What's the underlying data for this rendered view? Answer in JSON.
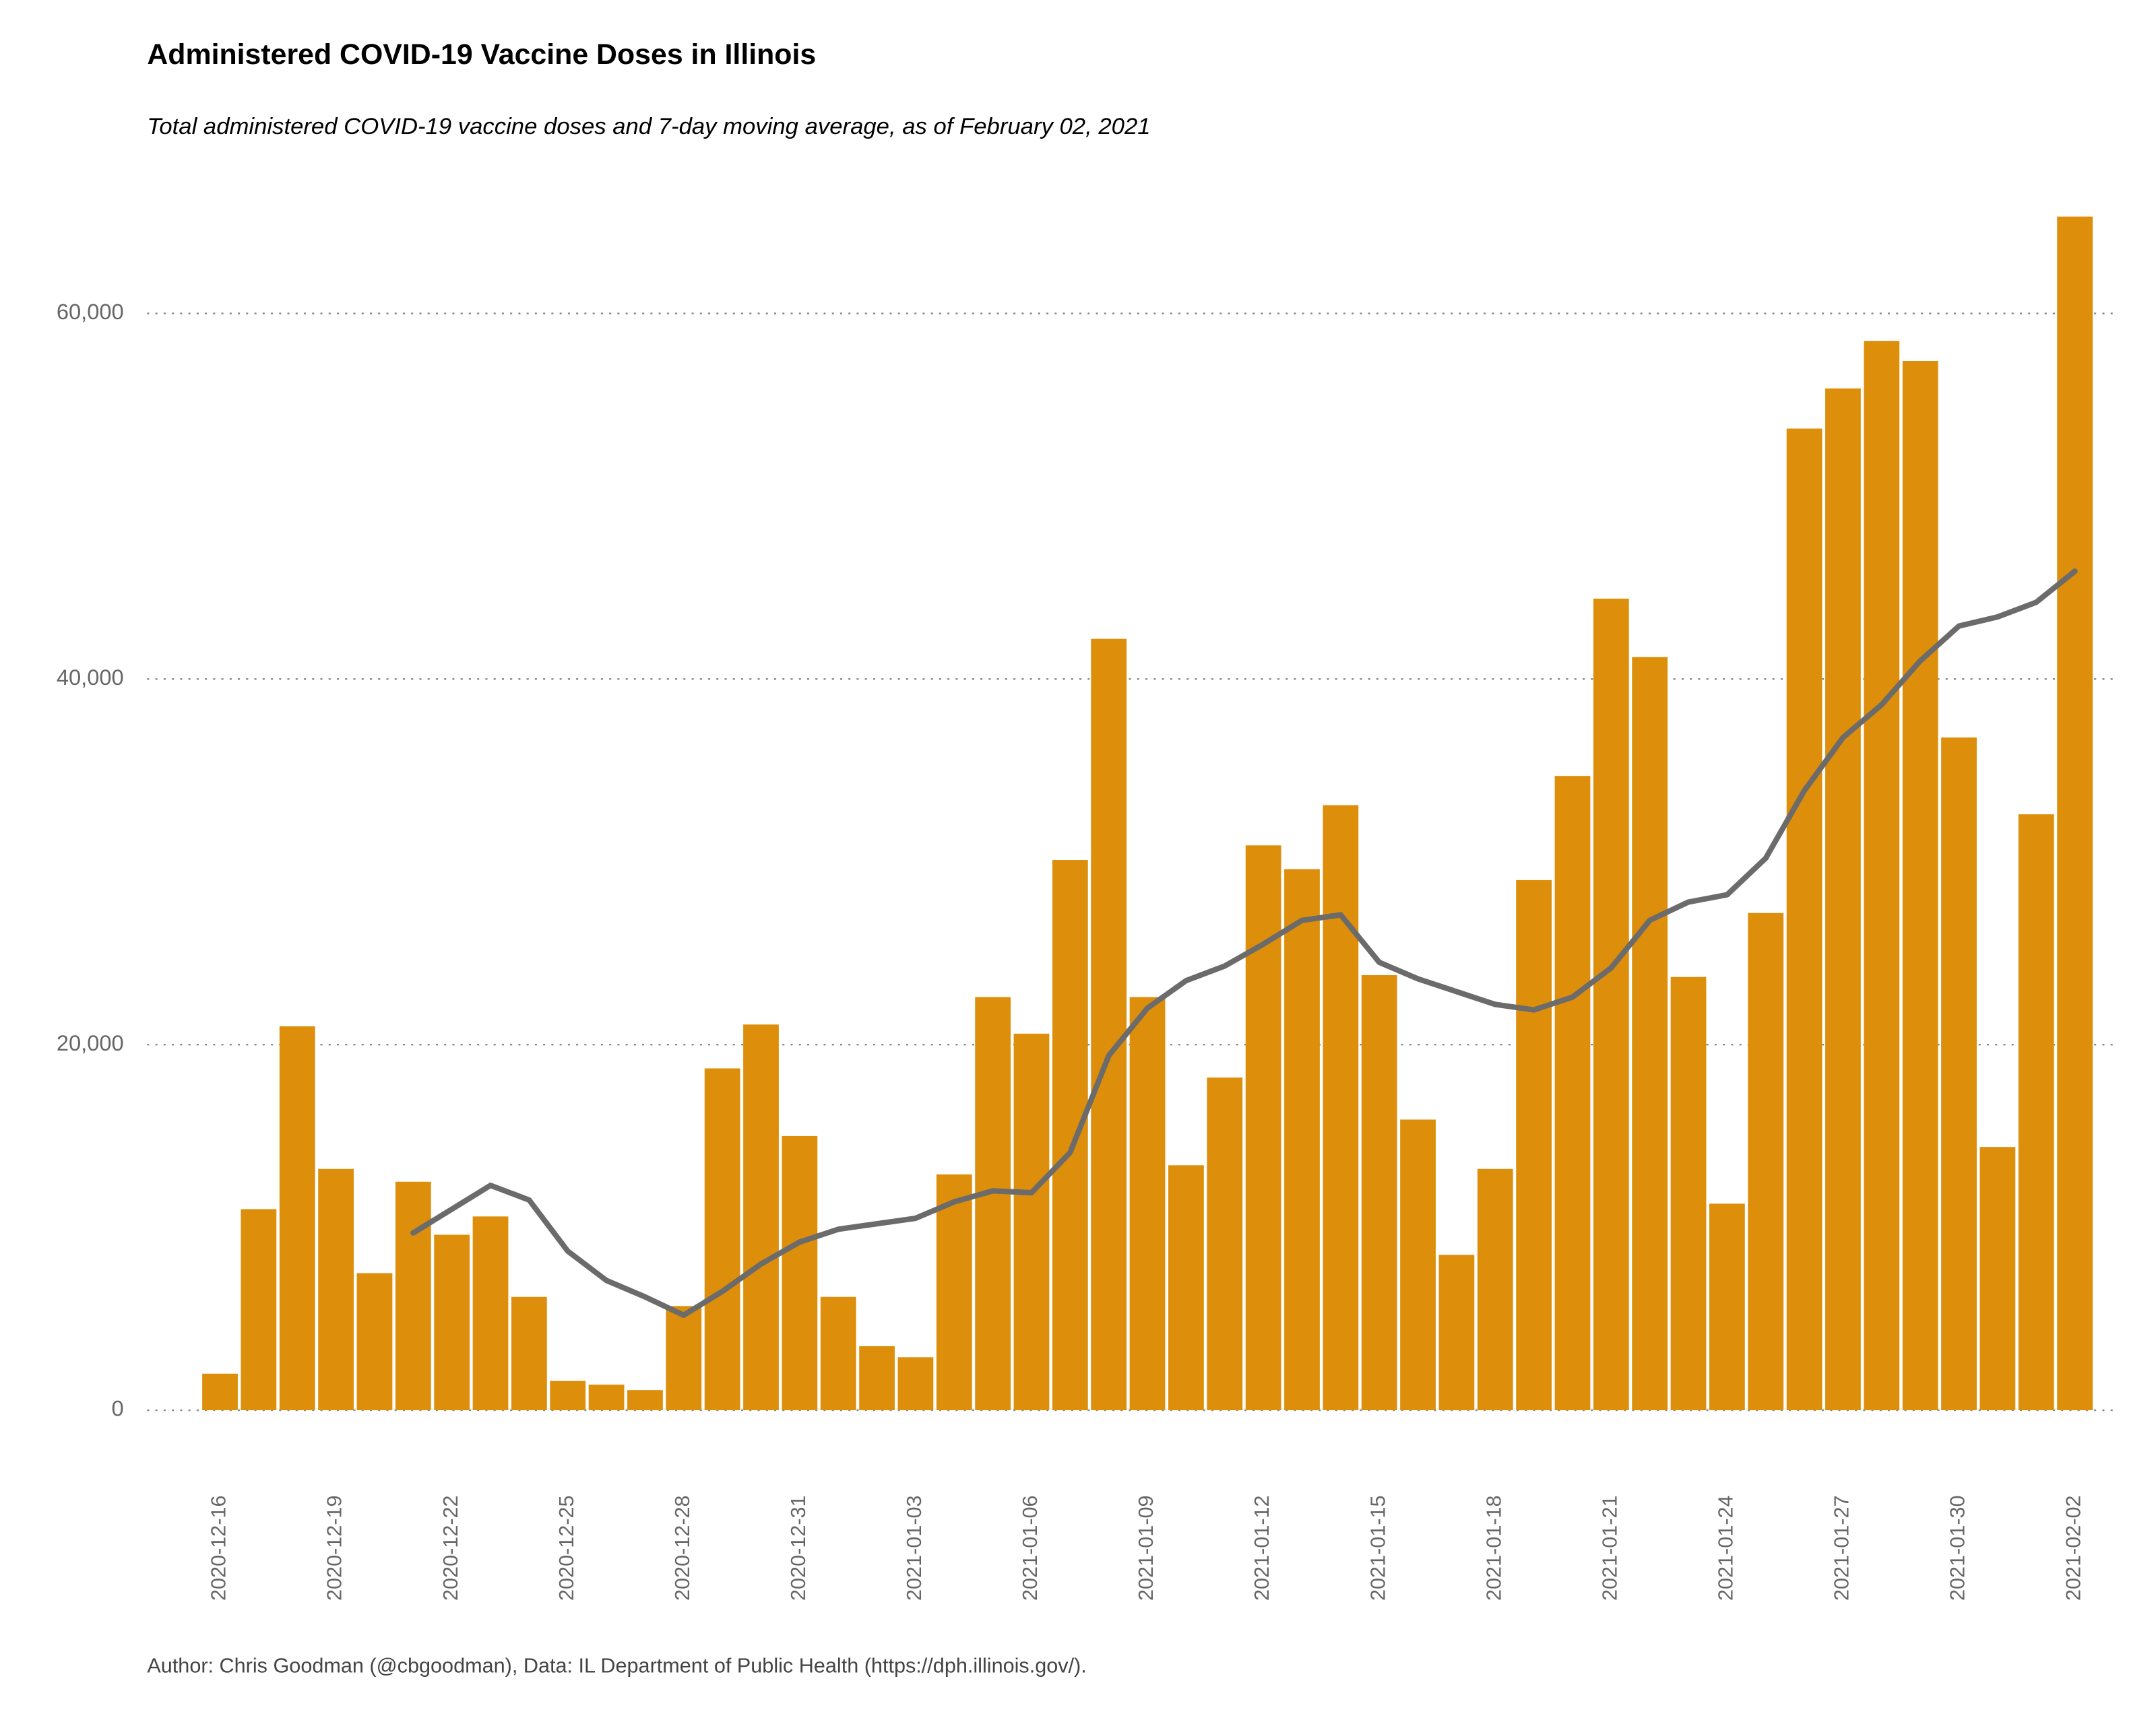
{
  "chart_data": {
    "type": "bar",
    "title": "Administered COVID-19 Vaccine Doses in Illinois",
    "subtitle": "Total administered COVID-19 vaccine doses and 7-day moving average, as of February 02, 2021",
    "caption": "Author: Chris Goodman (@cbgoodman), Data: IL Department of Public Health (https://dph.illinois.gov/).",
    "categories": [
      "2020-12-16",
      null,
      null,
      "2020-12-19",
      null,
      null,
      "2020-12-22",
      null,
      null,
      "2020-12-25",
      null,
      null,
      "2020-12-28",
      null,
      null,
      "2020-12-31",
      null,
      null,
      "2021-01-03",
      null,
      null,
      "2021-01-06",
      null,
      null,
      "2021-01-09",
      null,
      null,
      "2021-01-12",
      null,
      null,
      "2021-01-15",
      null,
      null,
      "2021-01-18",
      null,
      null,
      "2021-01-21",
      null,
      null,
      "2021-01-24",
      null,
      null,
      "2021-01-27",
      null,
      null,
      "2021-01-30",
      null,
      null,
      "2021-02-02"
    ],
    "series": [
      {
        "type": "bar",
        "color": "#dd8e0b",
        "values": [
          2000,
          11000,
          21000,
          13200,
          7500,
          12500,
          9600,
          10600,
          6200,
          1600,
          1400,
          1100,
          5700,
          18700,
          21100,
          15000,
          6200,
          3500,
          2900,
          12900,
          22600,
          20600,
          30100,
          42200,
          22600,
          13400,
          18200,
          30900,
          29600,
          33100,
          23800,
          15900,
          8500,
          13200,
          29000,
          34700,
          44400,
          41200,
          23700,
          11300,
          27200,
          53700,
          55900,
          58500,
          57400,
          36800,
          14400,
          32600,
          65300
        ]
      },
      {
        "type": "line",
        "color": "#6b6b6b",
        "values": [
          null,
          null,
          null,
          null,
          null,
          9700,
          11000,
          12300,
          11500,
          8700,
          7100,
          6200,
          5200,
          6500,
          8000,
          9200,
          9900,
          10200,
          10500,
          11400,
          12000,
          11900,
          14100,
          19400,
          22000,
          23500,
          24300,
          25500,
          26800,
          27100,
          24500,
          23600,
          22900,
          22200,
          21900,
          22600,
          24200,
          26800,
          27800,
          28200,
          30200,
          33900,
          36800,
          38600,
          41000,
          42900,
          43400,
          44200,
          45900
        ]
      }
    ],
    "ylim": [
      -2550,
      65870
    ],
    "yticks": [
      0,
      {
        "value": 20000,
        "label": "20,000"
      },
      {
        "value": 40000,
        "label": "40,000"
      },
      {
        "value": 60000,
        "label": "60,000"
      }
    ],
    "grid": true
  }
}
